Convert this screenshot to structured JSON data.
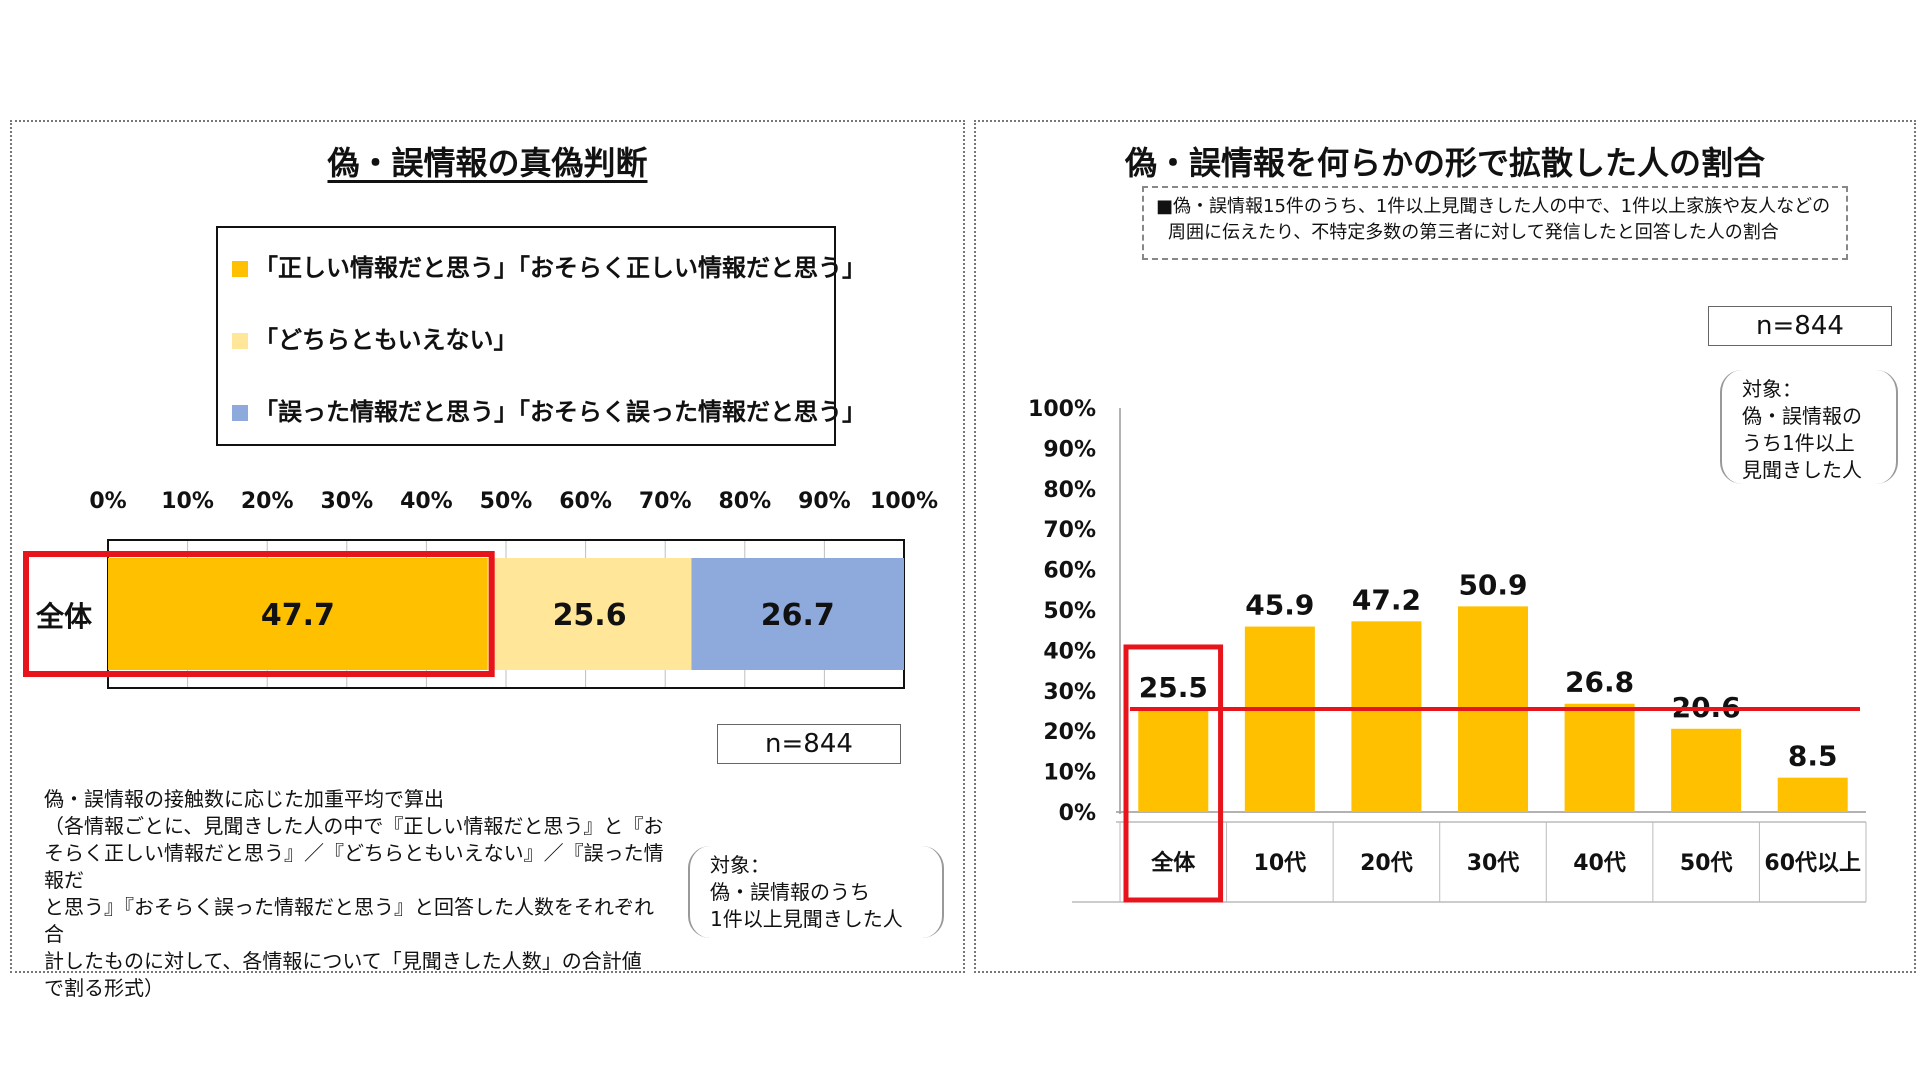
{
  "left": {
    "title": "偽・誤情報の真偽判断",
    "legend": [
      {
        "label": "「正しい情報だと思う」「おそらく正しい情報だと思う」",
        "color": "#FFC000"
      },
      {
        "label": "「どちらともいえない」",
        "color": "#FFE699"
      },
      {
        "label": "「誤った情報だと思う」「おそらく誤った情報だと思う」",
        "color": "#8EA9DB"
      }
    ],
    "n_label": "n=844",
    "note_title": "偽・誤情報の接触数に応じた加重平均で算出",
    "note_lines": [
      "（各情報ごとに、見聞きした人の中で『正しい情報だと思う』と『お",
      "そらく正しい情報だと思う』／『どちらともいえない』／『誤った情報だ",
      "と思う』『おそらく誤った情報だと思う』と回答した人数をそれぞれ合",
      "計したものに対して、各情報について「見聞きした人数」の合計値",
      "で割る形式）"
    ],
    "target_note": [
      "対象：",
      "偽・誤情報のうち",
      "1件以上見聞きした人"
    ]
  },
  "right": {
    "title": "偽・誤情報を何らかの形で拡散した人の割合",
    "desc_lines": [
      "■偽・誤情報15件のうち、1件以上見聞きした人の中で、1件以上家族や友人などの",
      "周囲に伝えたり、不特定多数の第三者に対して発信したと回答した人の割合"
    ],
    "n_label": "n=844",
    "target_note": [
      "対象：",
      "偽・誤情報の",
      "うち1件以上",
      "見聞きした人"
    ]
  },
  "colors": {
    "yes": "#FFC000",
    "neutral": "#FFE699",
    "no": "#8EA9DB",
    "highlight": "#E8141B"
  },
  "chart_data": [
    {
      "type": "bar",
      "orientation": "horizontal-stacked-100",
      "title": "偽・誤情報の真偽判断",
      "categories": [
        "全体"
      ],
      "series": [
        {
          "name": "「正しい情報だと思う」「おそらく正しい情報だと思う」",
          "values": [
            47.7
          ]
        },
        {
          "name": "「どちらともいえない」",
          "values": [
            25.6
          ]
        },
        {
          "name": "「誤った情報だと思う」「おそらく誤った情報だと思う」",
          "values": [
            26.7
          ]
        }
      ],
      "xlim": [
        0,
        100
      ],
      "xticks": [
        "0%",
        "10%",
        "20%",
        "30%",
        "40%",
        "50%",
        "60%",
        "70%",
        "80%",
        "90%",
        "100%"
      ],
      "grid": true,
      "legend": "top"
    },
    {
      "type": "bar",
      "title": "偽・誤情報を何らかの形で拡散した人の割合",
      "categories": [
        "全体",
        "10代",
        "20代",
        "30代",
        "40代",
        "50代",
        "60代以上"
      ],
      "values": [
        25.5,
        45.9,
        47.2,
        50.9,
        26.8,
        20.6,
        8.5
      ],
      "ylim": [
        0,
        100
      ],
      "yticks": [
        "0%",
        "10%",
        "20%",
        "30%",
        "40%",
        "50%",
        "60%",
        "70%",
        "80%",
        "90%",
        "100%"
      ],
      "reference_line": 25.5,
      "grid": false
    }
  ]
}
